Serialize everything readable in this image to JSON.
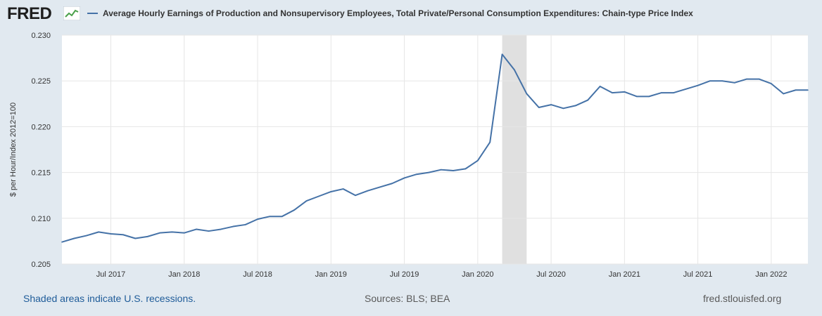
{
  "brand": {
    "logo_text": "FRED",
    "logo_icon": "line-chart-icon"
  },
  "colors": {
    "series": "#4572a7",
    "recession": "#e0e0e0",
    "grid": "#e6e6e6",
    "background": "#e1e9f0"
  },
  "chart_data": {
    "type": "line",
    "title": "",
    "legend": [
      "Average Hourly Earnings of Production and Nonsupervisory Employees, Total Private/Personal Consumption Expenditures: Chain-type Price Index"
    ],
    "ylabel": "$ per Hour/Index 2012=100",
    "xlabel": "",
    "ylim": [
      0.205,
      0.23
    ],
    "yticks": [
      "0.205",
      "0.210",
      "0.215",
      "0.220",
      "0.225",
      "0.230"
    ],
    "xticks": [
      "Jul 2017",
      "Jan 2018",
      "Jul 2018",
      "Jan 2019",
      "Jul 2019",
      "Jan 2020",
      "Jul 2020",
      "Jan 2021",
      "Jul 2021",
      "Jan 2022"
    ],
    "xrange": [
      "2017-03",
      "2022-04"
    ],
    "grid": true,
    "recession": {
      "start": "2020-03",
      "end": "2020-05"
    },
    "series": [
      {
        "name": "Average Hourly Earnings of Production and Nonsupervisory Employees, Total Private/Personal Consumption Expenditures: Chain-type Price Index",
        "x": [
          "2017-03",
          "2017-04",
          "2017-05",
          "2017-06",
          "2017-07",
          "2017-08",
          "2017-09",
          "2017-10",
          "2017-11",
          "2017-12",
          "2018-01",
          "2018-02",
          "2018-03",
          "2018-04",
          "2018-05",
          "2018-06",
          "2018-07",
          "2018-08",
          "2018-09",
          "2018-10",
          "2018-11",
          "2018-12",
          "2019-01",
          "2019-02",
          "2019-03",
          "2019-04",
          "2019-05",
          "2019-06",
          "2019-07",
          "2019-08",
          "2019-09",
          "2019-10",
          "2019-11",
          "2019-12",
          "2020-01",
          "2020-02",
          "2020-03",
          "2020-04",
          "2020-05",
          "2020-06",
          "2020-07",
          "2020-08",
          "2020-09",
          "2020-10",
          "2020-11",
          "2020-12",
          "2021-01",
          "2021-02",
          "2021-03",
          "2021-04",
          "2021-05",
          "2021-06",
          "2021-07",
          "2021-08",
          "2021-09",
          "2021-10",
          "2021-11",
          "2021-12",
          "2022-01",
          "2022-02",
          "2022-03",
          "2022-04"
        ],
        "values": [
          0.2074,
          0.2078,
          0.2081,
          0.2085,
          0.2083,
          0.2082,
          0.2078,
          0.208,
          0.2084,
          0.2085,
          0.2084,
          0.2088,
          0.2086,
          0.2088,
          0.2091,
          0.2093,
          0.2099,
          0.2102,
          0.2102,
          0.2109,
          0.2119,
          0.2124,
          0.2129,
          0.2132,
          0.2125,
          0.213,
          0.2134,
          0.2138,
          0.2144,
          0.2148,
          0.215,
          0.2153,
          0.2152,
          0.2154,
          0.2163,
          0.2183,
          0.2279,
          0.2262,
          0.2236,
          0.2221,
          0.2224,
          0.222,
          0.2223,
          0.2229,
          0.2244,
          0.2237,
          0.2238,
          0.2233,
          0.2233,
          0.2237,
          0.2237,
          0.2241,
          0.2245,
          0.225,
          0.225,
          0.2248,
          0.2252,
          0.2252,
          0.2247,
          0.2236,
          0.224,
          0.224
        ]
      }
    ]
  },
  "footer": {
    "recession_note": "Shaded areas indicate U.S. recessions.",
    "sources": "Sources: BLS; BEA",
    "site": "fred.stlouisfed.org"
  }
}
